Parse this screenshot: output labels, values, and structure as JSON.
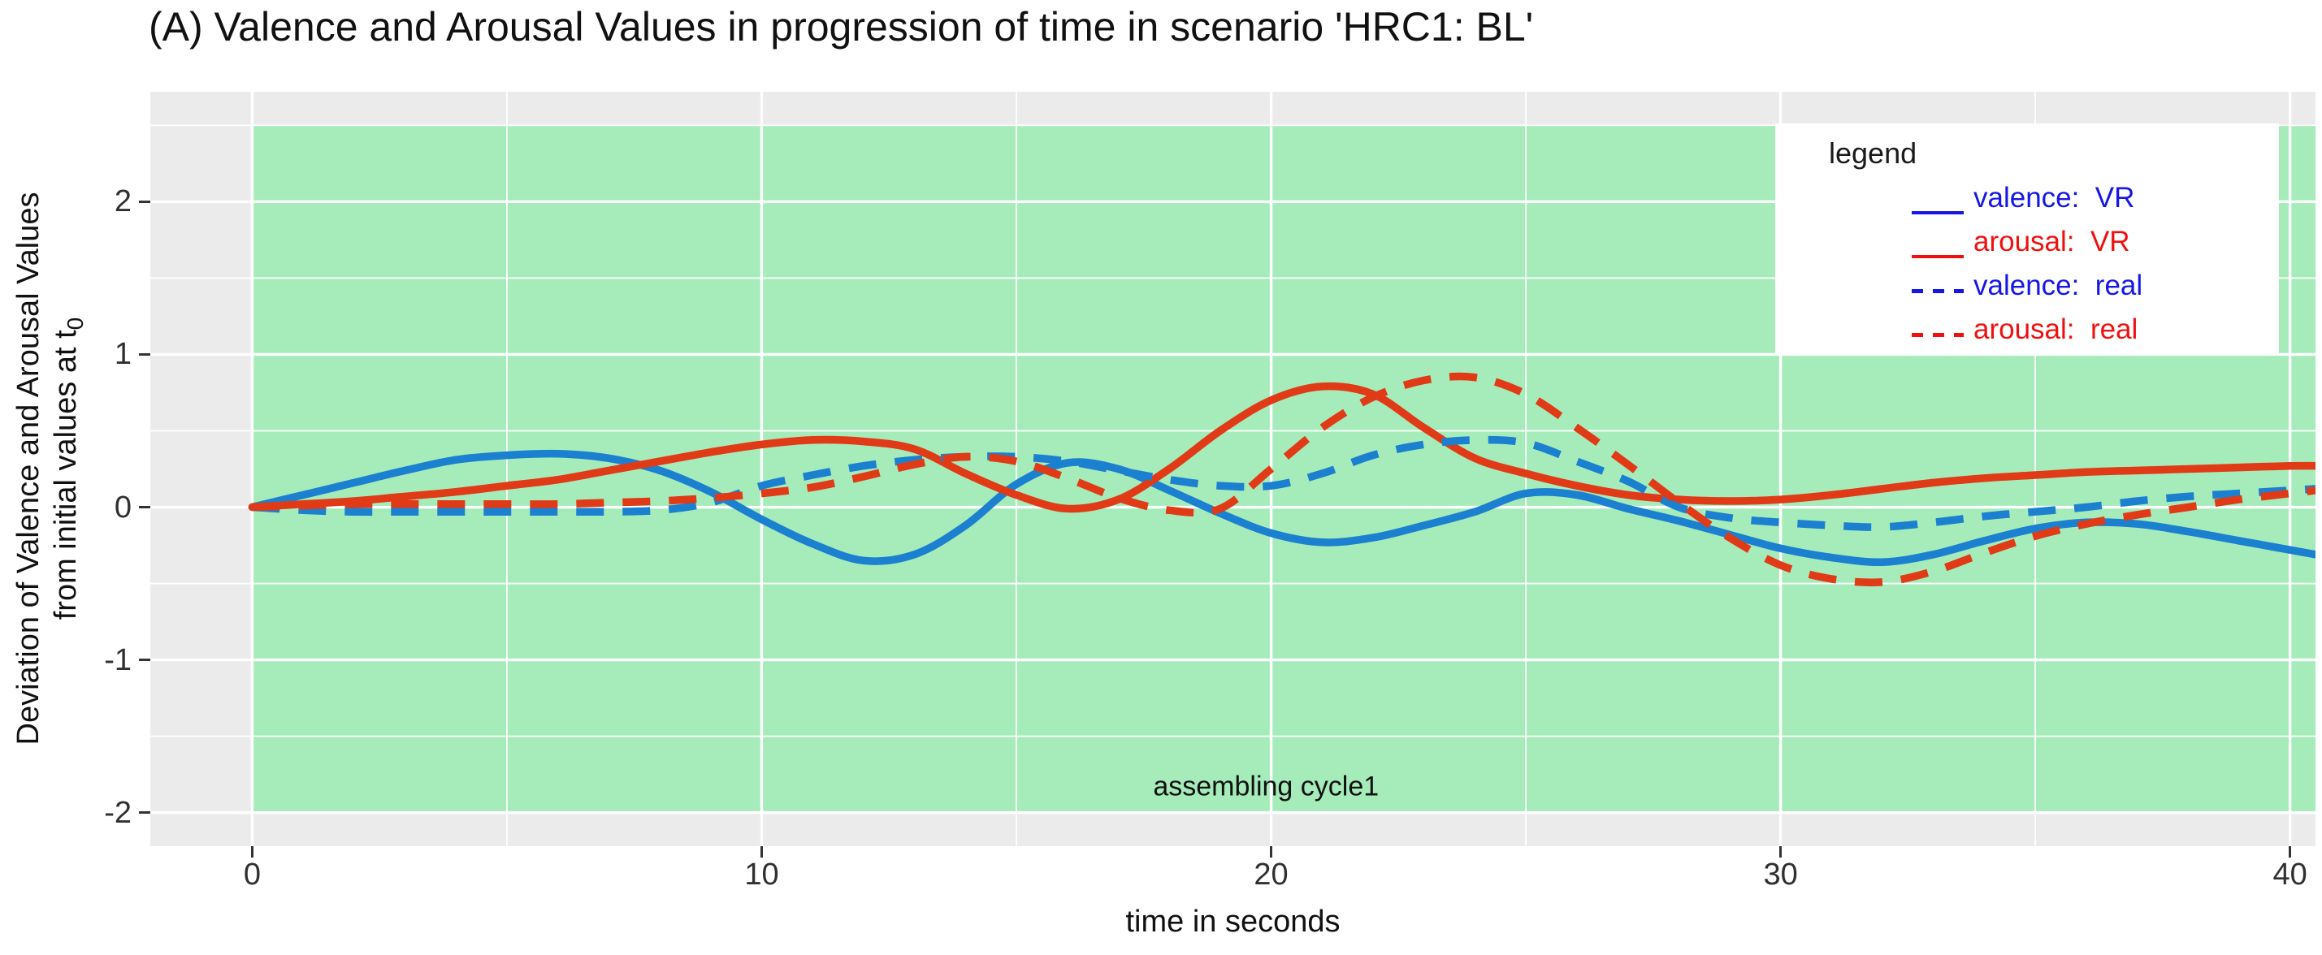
{
  "title": {
    "text": "(A) Valence and Arousal Values in progression of time in scenario 'HRC1: BL'"
  },
  "axes": {
    "x": {
      "label": "time in seconds",
      "ticks": [
        {
          "value": 0,
          "label": "0"
        },
        {
          "value": 10,
          "label": "10"
        },
        {
          "value": 20,
          "label": "20"
        },
        {
          "value": 30,
          "label": "30"
        },
        {
          "value": 40,
          "label": "40"
        }
      ]
    },
    "y": {
      "label_line1": "Deviation of Valence and Arousal Values",
      "label_line2": "from initial values at t",
      "label_subscript": "0",
      "ticks": [
        {
          "value": 2,
          "label": "2"
        },
        {
          "value": 1,
          "label": "1"
        },
        {
          "value": 0,
          "label": "0"
        },
        {
          "value": -1,
          "label": "-1"
        },
        {
          "value": -2,
          "label": "-2"
        }
      ]
    }
  },
  "legend": {
    "title": "legend",
    "entries": [
      {
        "label": "valence:  VR",
        "color": "#1616e6",
        "style": "solid"
      },
      {
        "label": "arousal:  VR",
        "color": "#ef1010",
        "style": "solid"
      },
      {
        "label": "valence:  real",
        "color": "#1616e6",
        "style": "dashed"
      },
      {
        "label": "arousal:  real",
        "color": "#ef1010",
        "style": "dashed"
      }
    ]
  },
  "annotation": {
    "text": "assembling cycle1",
    "t": 19.9,
    "v": -1.83
  },
  "colors": {
    "panel_bg": "#ebebeb",
    "grid": "#ffffff",
    "region": "#a6ecba",
    "series_blue": "#1b80cf",
    "series_red": "#e03a16",
    "text": "#1a1a1a"
  },
  "chart_data": {
    "type": "line",
    "title": "(A) Valence and Arousal Values in progression of time in scenario 'HRC1: BL'",
    "xlabel": "time in seconds",
    "ylabel": "Deviation of Valence and Arousal Values from initial values at t0",
    "x_range": [
      -2,
      40.5
    ],
    "y_range": [
      -2.22,
      2.72
    ],
    "x_major_ticks": [
      0,
      10,
      20,
      30,
      40
    ],
    "x_minor_ticks": [
      5,
      15,
      25,
      35
    ],
    "y_major_ticks": [
      -2,
      -1,
      0,
      1,
      2
    ],
    "y_minor_ticks": [
      -1.5,
      -0.5,
      0.5,
      1.5,
      2.5
    ],
    "grid": true,
    "legend_position": "top-right",
    "highlight_region": {
      "label": "assembling cycle1",
      "x_start": 0,
      "x_end": 40.5,
      "y_min": -2,
      "y_max": 2.5,
      "color": "#a6ecba"
    },
    "x": [
      0,
      1,
      2,
      3,
      4,
      5,
      6,
      7,
      8,
      9,
      10,
      11,
      12,
      13,
      14,
      15,
      16,
      17,
      18,
      19,
      20,
      21,
      22,
      23,
      24,
      25,
      26,
      27,
      28,
      29,
      30,
      31,
      32,
      33,
      34,
      35,
      36,
      37,
      38,
      39,
      40,
      40.5
    ],
    "series": [
      {
        "name": "valence: VR",
        "color": "#1b80cf",
        "dash": false,
        "values": [
          0.0,
          0.08,
          0.16,
          0.24,
          0.31,
          0.34,
          0.35,
          0.32,
          0.24,
          0.1,
          -0.08,
          -0.24,
          -0.35,
          -0.31,
          -0.12,
          0.15,
          0.29,
          0.25,
          0.11,
          -0.04,
          -0.17,
          -0.23,
          -0.2,
          -0.12,
          -0.03,
          0.09,
          0.08,
          -0.01,
          -0.09,
          -0.18,
          -0.27,
          -0.33,
          -0.36,
          -0.31,
          -0.22,
          -0.14,
          -0.1,
          -0.11,
          -0.16,
          -0.22,
          -0.28,
          -0.31
        ]
      },
      {
        "name": "arousal: VR",
        "color": "#e03a16",
        "dash": false,
        "values": [
          0.0,
          0.02,
          0.04,
          0.07,
          0.1,
          0.14,
          0.18,
          0.24,
          0.3,
          0.36,
          0.41,
          0.44,
          0.43,
          0.38,
          0.22,
          0.08,
          -0.01,
          0.05,
          0.25,
          0.5,
          0.7,
          0.79,
          0.74,
          0.52,
          0.32,
          0.22,
          0.14,
          0.08,
          0.05,
          0.04,
          0.05,
          0.08,
          0.12,
          0.16,
          0.19,
          0.21,
          0.23,
          0.24,
          0.25,
          0.26,
          0.27,
          0.27
        ]
      },
      {
        "name": "valence: real",
        "color": "#1b80cf",
        "dash": true,
        "values": [
          0.0,
          -0.02,
          -0.03,
          -0.03,
          -0.03,
          -0.03,
          -0.03,
          -0.03,
          -0.02,
          0.03,
          0.14,
          0.21,
          0.27,
          0.31,
          0.33,
          0.33,
          0.3,
          0.24,
          0.18,
          0.14,
          0.14,
          0.22,
          0.34,
          0.41,
          0.44,
          0.42,
          0.3,
          0.17,
          0.0,
          -0.07,
          -0.1,
          -0.12,
          -0.13,
          -0.1,
          -0.06,
          -0.03,
          0.0,
          0.04,
          0.07,
          0.09,
          0.11,
          0.12
        ]
      },
      {
        "name": "arousal: real",
        "color": "#e03a16",
        "dash": true,
        "values": [
          0.0,
          0.01,
          0.02,
          0.02,
          0.02,
          0.02,
          0.02,
          0.03,
          0.04,
          0.06,
          0.09,
          0.13,
          0.2,
          0.28,
          0.33,
          0.3,
          0.19,
          0.06,
          -0.02,
          -0.01,
          0.25,
          0.52,
          0.72,
          0.83,
          0.85,
          0.74,
          0.52,
          0.28,
          0.03,
          -0.2,
          -0.38,
          -0.47,
          -0.49,
          -0.42,
          -0.3,
          -0.19,
          -0.11,
          -0.05,
          0.0,
          0.05,
          0.09,
          0.11
        ]
      }
    ]
  }
}
